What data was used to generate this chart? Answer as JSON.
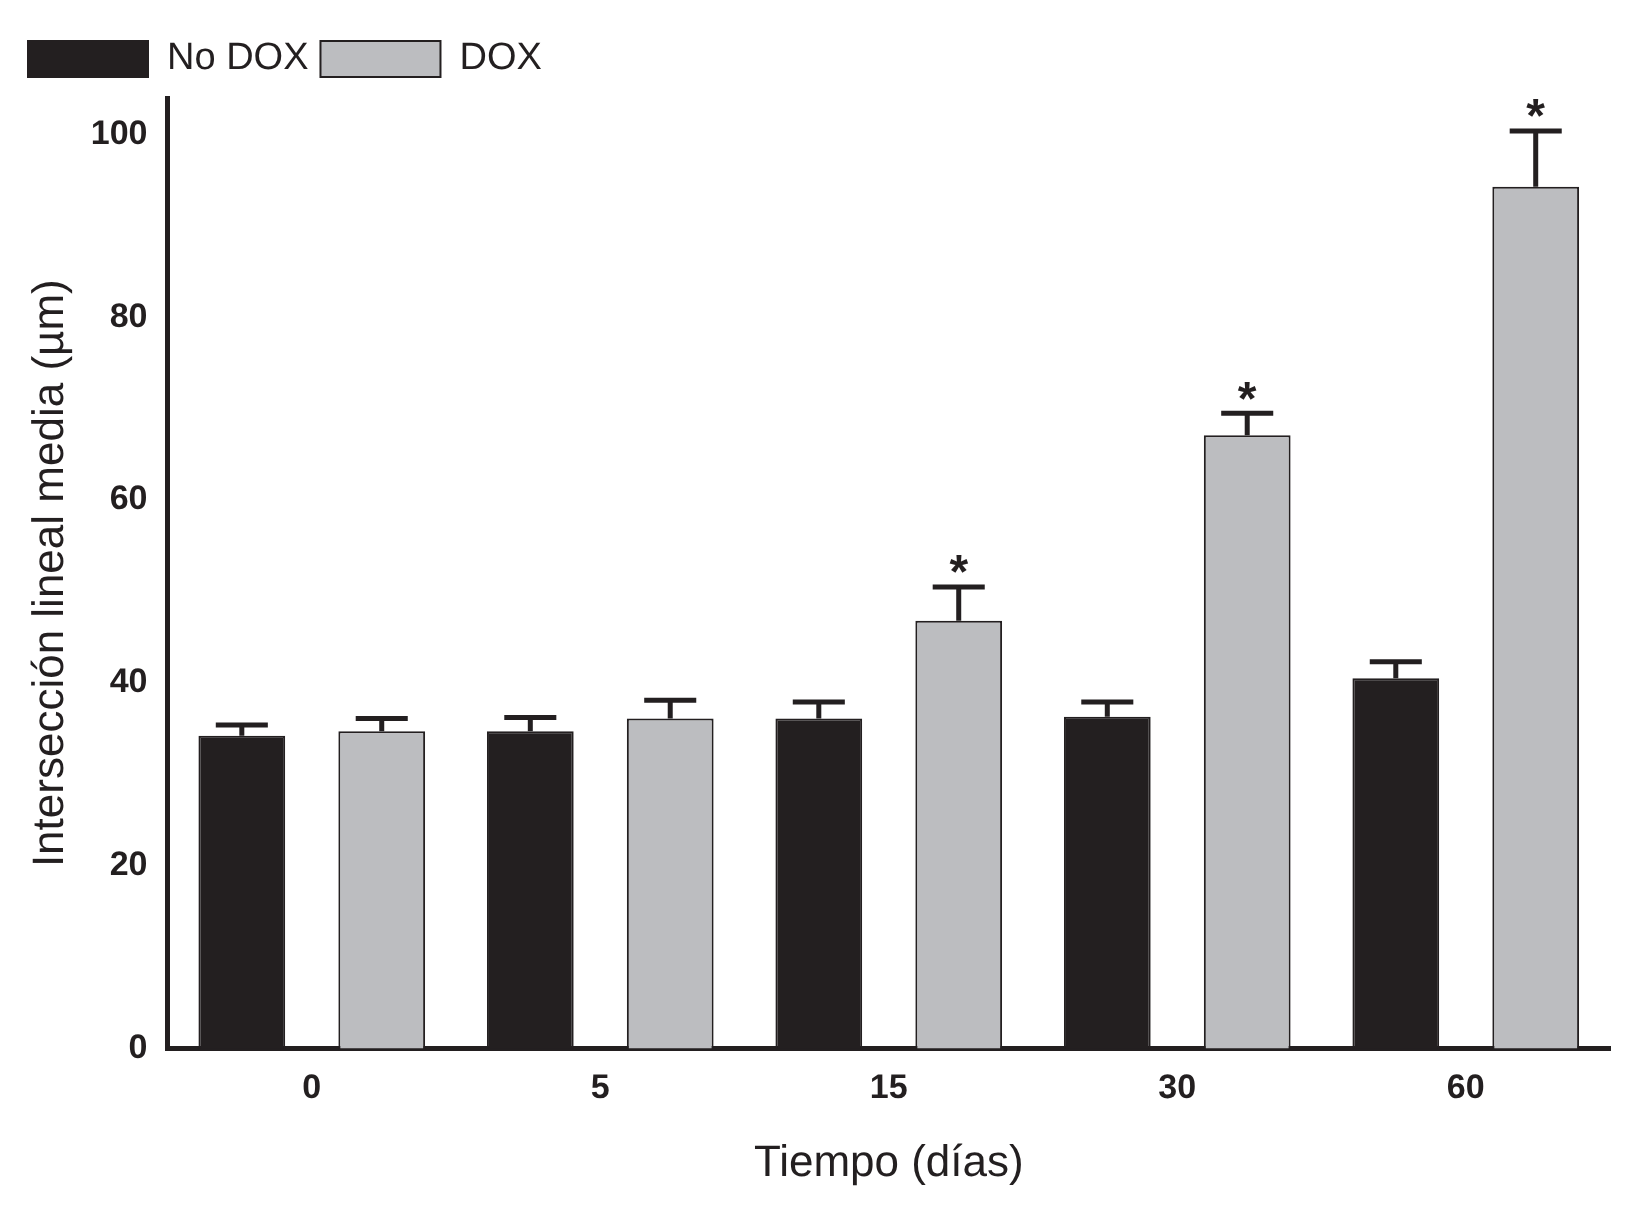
{
  "chart_data": {
    "type": "bar",
    "xlabel": "Tiempo (días)",
    "ylabel": "Intersección lineal media (µm)",
    "categories": [
      "0",
      "5",
      "15",
      "30",
      "60"
    ],
    "series": [
      {
        "name": "No DOX",
        "color": "#231f20",
        "values": [
          34.2,
          34.7,
          36.1,
          36.3,
          40.5
        ],
        "errors": [
          [
            34.2,
            35.4
          ],
          [
            34.7,
            36.2
          ],
          [
            36.1,
            37.9
          ],
          [
            36.3,
            37.9
          ],
          [
            40.5,
            42.3
          ]
        ]
      },
      {
        "name": "DOX",
        "color": "#bcbdc0",
        "values": [
          34.7,
          36.1,
          46.8,
          67.1,
          94.3
        ],
        "errors": [
          [
            34.7,
            36.1
          ],
          [
            36.1,
            38.1
          ],
          [
            46.8,
            50.5
          ],
          [
            67.1,
            69.5
          ],
          [
            94.3,
            100.4
          ]
        ]
      }
    ],
    "annotations": [
      "*",
      "*",
      "*"
    ],
    "ylim": [
      0,
      104
    ],
    "yticks": [
      0,
      20,
      40,
      60,
      80,
      100
    ],
    "grid": false,
    "legend": "top left"
  }
}
